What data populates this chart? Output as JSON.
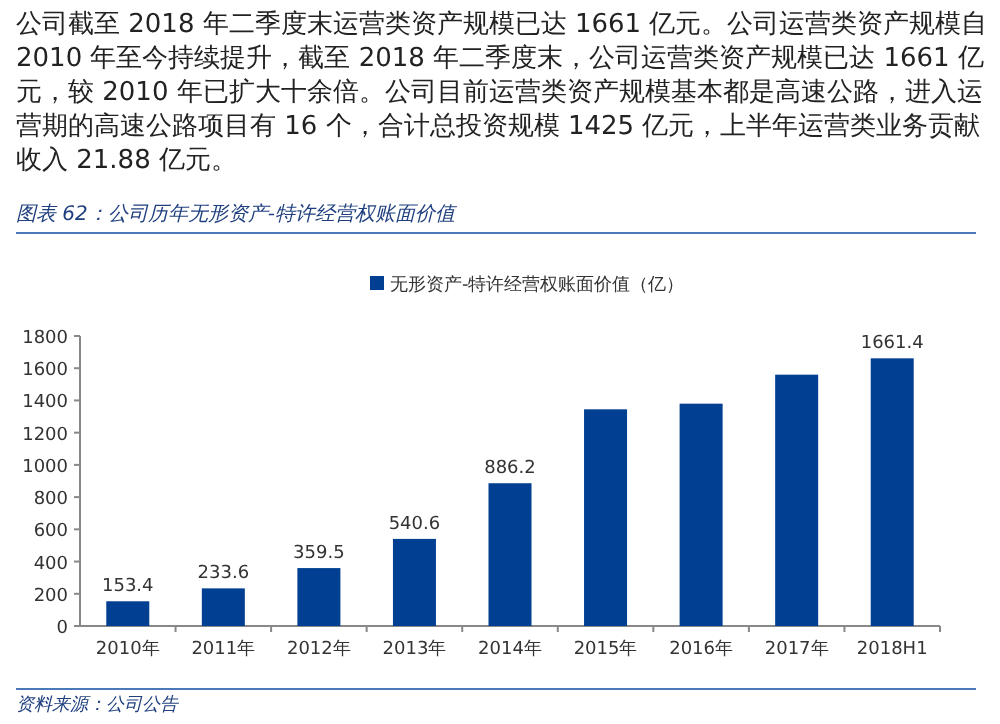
{
  "chart_data": {
    "type": "bar",
    "title": "图表 62：公司历年无形资产-特许经营权账面价值",
    "annotations": [
      "公司截至 2018 年二季度末运营类资产规模已达 1661 亿元。公司运营类资产规模自 2010 年至今持续提升，截至 2018 年二季度末，公司运营类资产规模已达 1661 亿元，较 2010 年已扩大十余倍。公司目前运营类资产规模基本都是高速公路，进入运营期的高速公路项目有 16 个，合计总投资规模 1425 亿元，上半年运营类业务贡献收入 21.88 亿元。",
      "资料来源：公司公告"
    ],
    "categories": [
      "2010年",
      "2011年",
      "2012年",
      "2013年",
      "2014年",
      "2015年",
      "2016年",
      "2017年",
      "2018H1"
    ],
    "series": [
      {
        "name": "无形资产-特许经营权账面价值（亿）",
        "color": "#003f91",
        "values": [
          153.4,
          233.6,
          359.5,
          540.6,
          886.2,
          1345,
          1380,
          1560,
          1661.4
        ],
        "value_labels": [
          "153.4",
          "233.6",
          "359.5",
          "540.6",
          "886.2",
          null,
          null,
          null,
          "1661.4"
        ]
      }
    ],
    "ylim": [
      0,
      1800
    ],
    "yticks": [
      0,
      200,
      400,
      600,
      800,
      1000,
      1200,
      1400,
      1600,
      1800
    ],
    "grid": false,
    "legend": "top"
  }
}
